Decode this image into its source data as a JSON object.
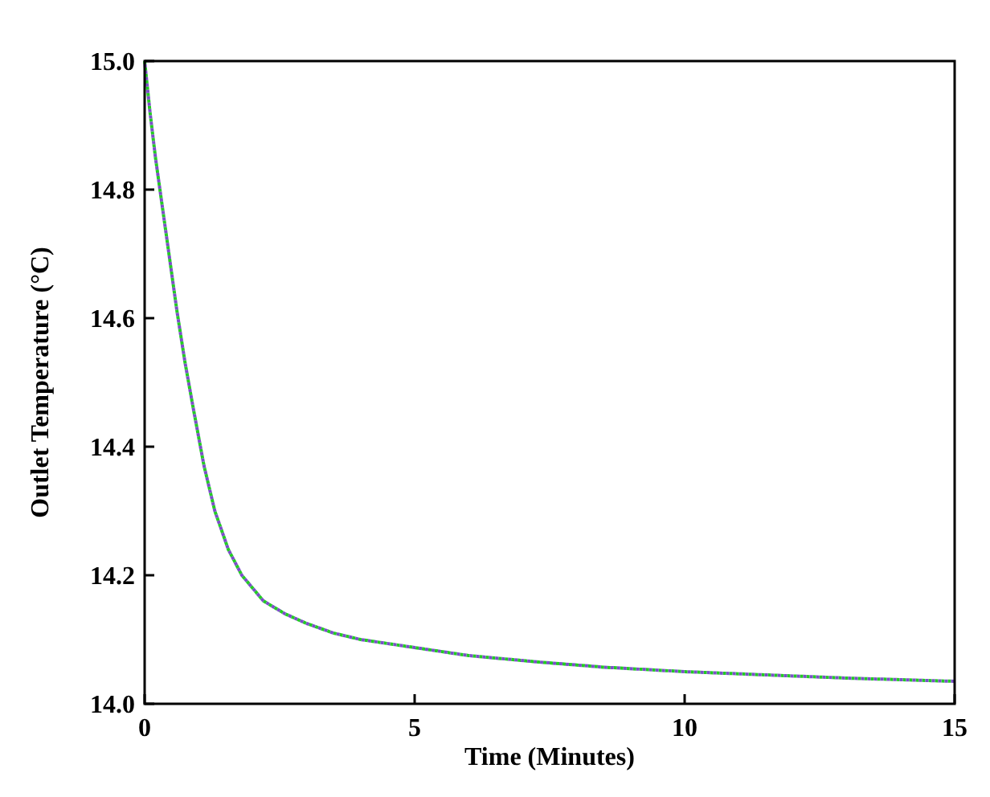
{
  "chart_data": {
    "type": "line",
    "xlabel": "Time (Minutes)",
    "ylabel": "Outlet Temperature (°C)",
    "xlim": [
      0,
      15
    ],
    "xticks": [
      0,
      5,
      10,
      15
    ],
    "ylim": [
      14.0,
      15.0
    ],
    "yticks": [
      {
        "value": 14.0,
        "label": "14.0"
      },
      14.2,
      14.4,
      14.6,
      14.8,
      {
        "value": 15.0,
        "label": "15.0"
      }
    ],
    "line_style": "dotted",
    "grid": false,
    "series": [
      {
        "color": "#22cc22",
        "x": [
          0,
          0.1,
          0.2,
          0.3,
          0.45,
          0.6,
          0.75,
          0.9,
          1.1,
          1.3,
          1.55,
          1.8,
          2.2,
          2.6,
          3.0,
          3.5,
          4.0,
          4.8,
          6.0,
          7.3,
          8.5,
          10,
          11.5,
          13,
          15
        ],
        "values": [
          15.0,
          14.92,
          14.85,
          14.79,
          14.7,
          14.61,
          14.53,
          14.46,
          14.37,
          14.3,
          14.24,
          14.2,
          14.16,
          14.14,
          14.125,
          14.11,
          14.1,
          14.09,
          14.075,
          14.065,
          14.057,
          14.05,
          14.045,
          14.04,
          14.035
        ]
      },
      {
        "color": "#7b4fc8",
        "x": [
          0,
          0.1,
          0.2,
          0.3,
          0.45,
          0.6,
          0.75,
          0.9,
          1.1,
          1.3,
          1.55,
          1.8,
          2.2,
          2.6,
          3.0,
          3.5,
          4.0,
          4.8,
          6.0,
          7.3,
          8.5,
          10,
          11.5,
          13,
          15
        ],
        "values": [
          15.0,
          14.92,
          14.85,
          14.79,
          14.7,
          14.61,
          14.53,
          14.46,
          14.37,
          14.3,
          14.24,
          14.2,
          14.16,
          14.14,
          14.125,
          14.11,
          14.1,
          14.09,
          14.075,
          14.065,
          14.057,
          14.05,
          14.045,
          14.04,
          14.035
        ]
      }
    ]
  }
}
